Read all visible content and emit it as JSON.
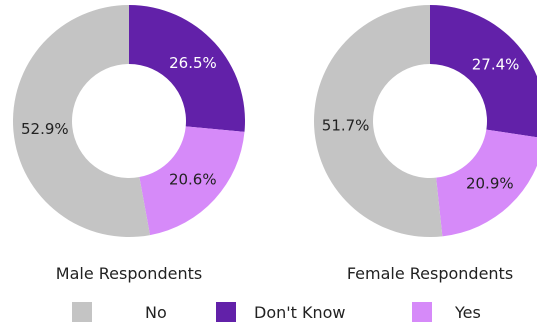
{
  "chart_data": [
    {
      "type": "pie",
      "variant": "donut",
      "title": "Male Respondents",
      "categories": [
        "No",
        "Don't Know",
        "Yes"
      ],
      "values": [
        52.9,
        26.5,
        20.6
      ],
      "labels": [
        "52.9%",
        "26.5%",
        "20.6%"
      ],
      "colors": [
        "#c4c4c4",
        "#6221a9",
        "#d68af9"
      ],
      "label_colors": [
        "#222222",
        "#ffffff",
        "#222222"
      ]
    },
    {
      "type": "pie",
      "variant": "donut",
      "title": "Female Respondents",
      "categories": [
        "No",
        "Don't Know",
        "Yes"
      ],
      "values": [
        51.7,
        27.4,
        20.9
      ],
      "labels": [
        "51.7%",
        "27.4%",
        "20.9%"
      ],
      "colors": [
        "#c4c4c4",
        "#6221a9",
        "#d68af9"
      ],
      "label_colors": [
        "#222222",
        "#ffffff",
        "#222222"
      ]
    }
  ],
  "legend": {
    "placement": "bottom",
    "items": [
      {
        "label": "No",
        "color": "#c4c4c4"
      },
      {
        "label": "Don't Know",
        "color": "#6221a9"
      },
      {
        "label": "Yes",
        "color": "#d68af9"
      }
    ]
  }
}
